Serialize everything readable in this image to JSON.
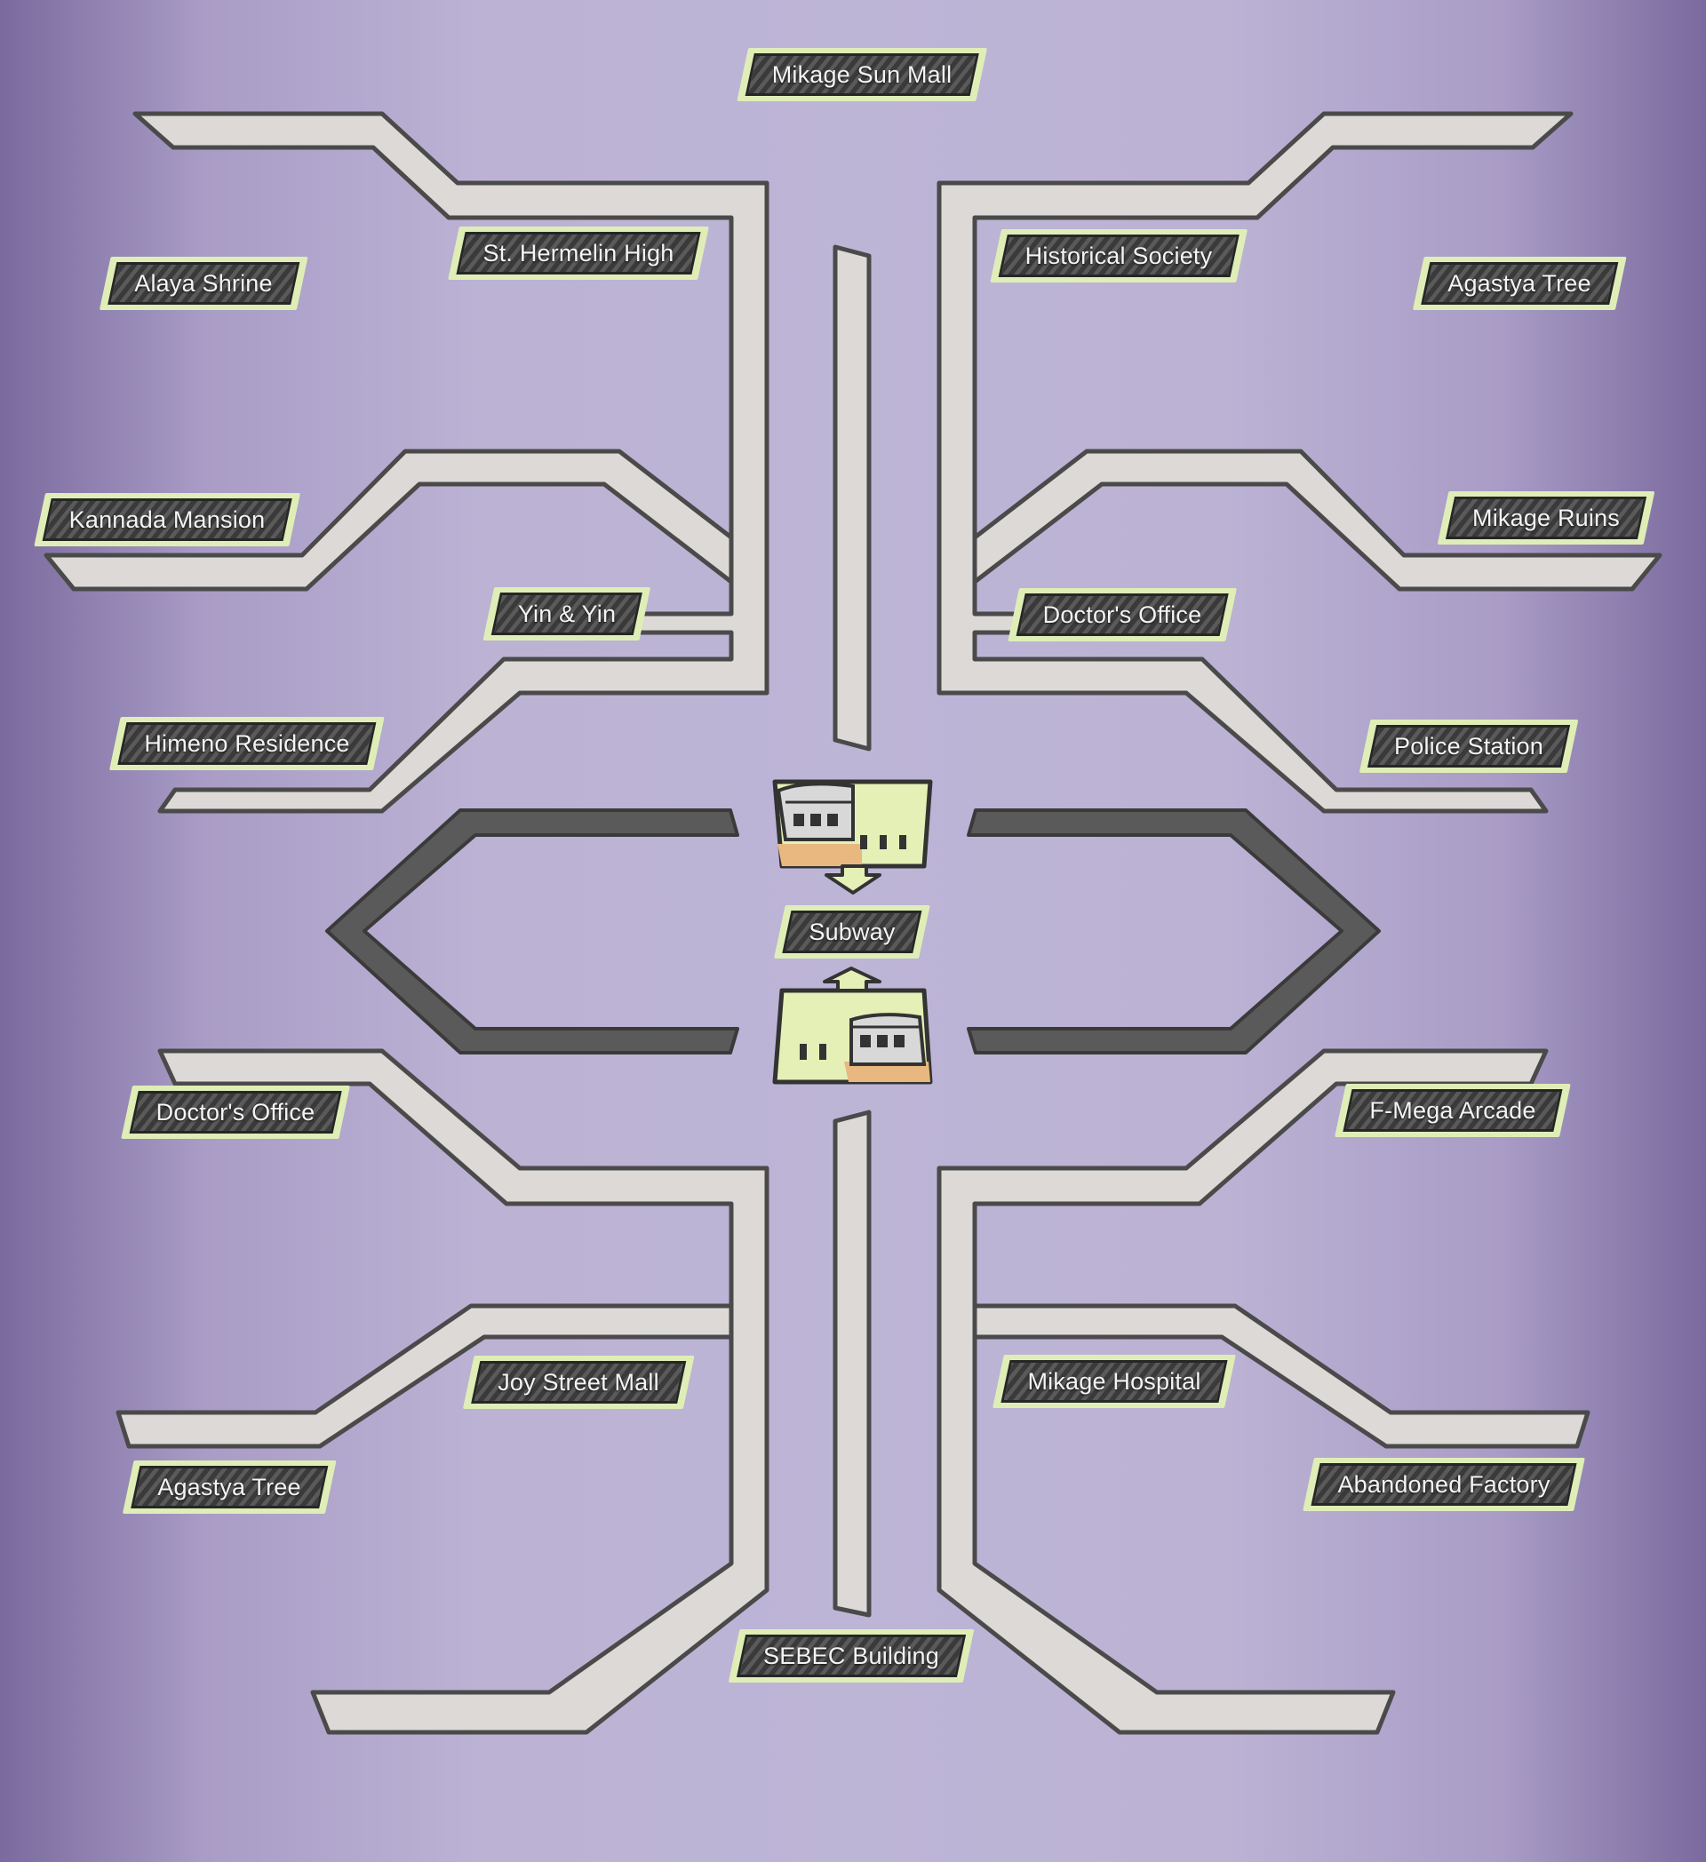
{
  "title": "Mikage Sun Mall",
  "hub": {
    "label": "Subway"
  },
  "bottom_label": "SEBEC Building",
  "locations": {
    "alaya_shrine": "Alaya Shrine",
    "st_hermelin_high": "St. Hermelin High",
    "historical_society": "Historical Society",
    "agastya_tree_top": "Agastya Tree",
    "kannada_mansion": "Kannada Mansion",
    "mikage_ruins": "Mikage Ruins",
    "yin_and_yin": "Yin & Yin",
    "doctors_office_top": "Doctor's Office",
    "himeno_residence": "Himeno Residence",
    "police_station": "Police Station",
    "doctors_office_bottom": "Doctor's Office",
    "f_mega_arcade": "F-Mega Arcade",
    "joy_street_mall": "Joy Street Mall",
    "mikage_hospital": "Mikage Hospital",
    "agastya_tree_bottom": "Agastya Tree",
    "abandoned_factory": "Abandoned Factory"
  },
  "colors": {
    "road_fill": "#dcd9d6",
    "road_outline": "#4a4a4a",
    "subway_loop": "#5a5a5a",
    "label_bg": "#dfeeb7",
    "label_inner": "#3a3a3a"
  },
  "icons": [
    "train-icon",
    "down-arrow-icon",
    "up-arrow-icon"
  ]
}
